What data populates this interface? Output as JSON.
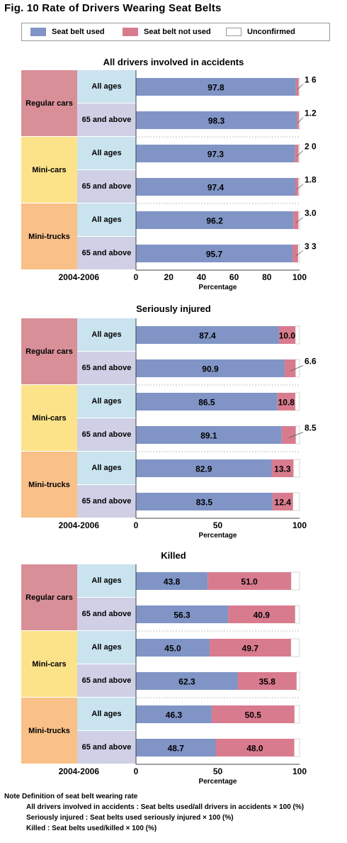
{
  "figure_title": "Fig. 10  Rate of Drivers Wearing Seat Belts",
  "legend": [
    {
      "label": "Seat belt used",
      "color": "#8094c6"
    },
    {
      "label": "Seat belt not used",
      "color": "#d97b8e"
    },
    {
      "label": "Unconfirmed",
      "color": "#ffffff"
    }
  ],
  "period_label": "2004-2006",
  "x_axis_label": "Percentage",
  "colors": {
    "used": "#8094c6",
    "not_used": "#d97b8e",
    "regular_cars": "#d98f98",
    "mini_cars": "#fce38a",
    "mini_trucks": "#f9c088",
    "all_ages": "#c9e3ef",
    "age_65": "#cfd0e6"
  },
  "vehicle_types": [
    "Regular cars",
    "Mini-cars",
    "Mini-trucks"
  ],
  "age_groups": [
    "All ages",
    "65 and above"
  ],
  "chart_data": [
    {
      "type": "bar",
      "title": "All drivers involved in accidents",
      "xlabel": "Percentage",
      "xlim": [
        0,
        100
      ],
      "x_ticks": [
        "0",
        "20",
        "40",
        "60",
        "80",
        "100"
      ],
      "categories": [
        "Regular cars / All ages",
        "Regular cars / 65 and above",
        "Mini-cars / All ages",
        "Mini-cars / 65 and above",
        "Mini-trucks / All ages",
        "Mini-trucks / 65 and above"
      ],
      "series": [
        {
          "name": "Seat belt used",
          "values": [
            97.8,
            98.3,
            97.3,
            97.4,
            96.2,
            95.7
          ],
          "labels": [
            "97.8",
            "98.3",
            "97.3",
            "97.4",
            "96.2",
            "95.7"
          ]
        },
        {
          "name": "Seat belt not used",
          "values": [
            1.6,
            1.2,
            2.0,
            1.8,
            3.0,
            3.3
          ],
          "labels": [
            "1 6",
            "1.2",
            "2 0",
            "1.8",
            "3.0",
            "3 3"
          ]
        }
      ]
    },
    {
      "type": "bar",
      "title": "Seriously injured",
      "xlabel": "Percentage",
      "xlim": [
        0,
        100
      ],
      "x_ticks": [
        "0",
        "50",
        "100"
      ],
      "categories": [
        "Regular cars / All ages",
        "Regular cars / 65 and above",
        "Mini-cars / All ages",
        "Mini-cars / 65 and above",
        "Mini-trucks / All ages",
        "Mini-trucks / 65 and above"
      ],
      "series": [
        {
          "name": "Seat belt used",
          "values": [
            87.4,
            90.9,
            86.5,
            89.1,
            82.9,
            83.5
          ],
          "labels": [
            "87.4",
            "90.9",
            "86.5",
            "89.1",
            "82.9",
            "83.5"
          ]
        },
        {
          "name": "Seat belt not used",
          "values": [
            10.0,
            6.6,
            10.8,
            8.5,
            13.3,
            12.4
          ],
          "labels": [
            "10.0",
            "6.6",
            "10.8",
            "8.5",
            "13.3",
            "12.4"
          ]
        }
      ]
    },
    {
      "type": "bar",
      "title": "Killed",
      "xlabel": "Percentage",
      "xlim": [
        0,
        100
      ],
      "x_ticks": [
        "0",
        "50",
        "100"
      ],
      "categories": [
        "Regular cars / All ages",
        "Regular cars / 65 and above",
        "Mini-cars / All ages",
        "Mini-cars / 65 and above",
        "Mini-trucks / All ages",
        "Mini-trucks / 65 and above"
      ],
      "series": [
        {
          "name": "Seat belt used",
          "values": [
            43.8,
            56.3,
            45.0,
            62.3,
            46.3,
            48.7
          ],
          "labels": [
            "43.8",
            "56.3",
            "45.0",
            "62.3",
            "46.3",
            "48.7"
          ]
        },
        {
          "name": "Seat belt not used",
          "values": [
            51.0,
            40.9,
            49.7,
            35.8,
            50.5,
            48.0
          ],
          "labels": [
            "51.0",
            "40.9",
            "49.7",
            "35.8",
            "50.5",
            "48.0"
          ]
        }
      ]
    }
  ],
  "note": {
    "heading": "Note  Definition of seat belt wearing rate",
    "lines": [
      "All drivers involved in accidents : Seat belts used/all drivers in accidents × 100 (%)",
      "Seriously injured : Seat belts used seriously injured × 100 (%)",
      "Killed : Seat belts used/killed × 100 (%)"
    ]
  }
}
